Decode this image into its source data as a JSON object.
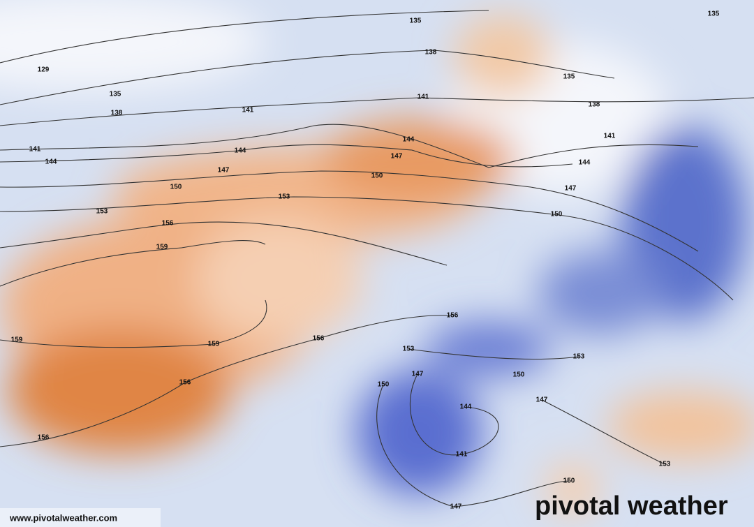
{
  "contour_labels": [
    135,
    138,
    129,
    135,
    138,
    141,
    141,
    135,
    138,
    135,
    141,
    144,
    144,
    144,
    147,
    147,
    141,
    144,
    147,
    150,
    150,
    153,
    153,
    150,
    156,
    159,
    159,
    159,
    156,
    156,
    153,
    153,
    150,
    147,
    150,
    156,
    147,
    144,
    141,
    153,
    150,
    147,
    156
  ],
  "footer": {
    "url": "www.pivotalweather.com",
    "brand": "pivotal weather"
  }
}
